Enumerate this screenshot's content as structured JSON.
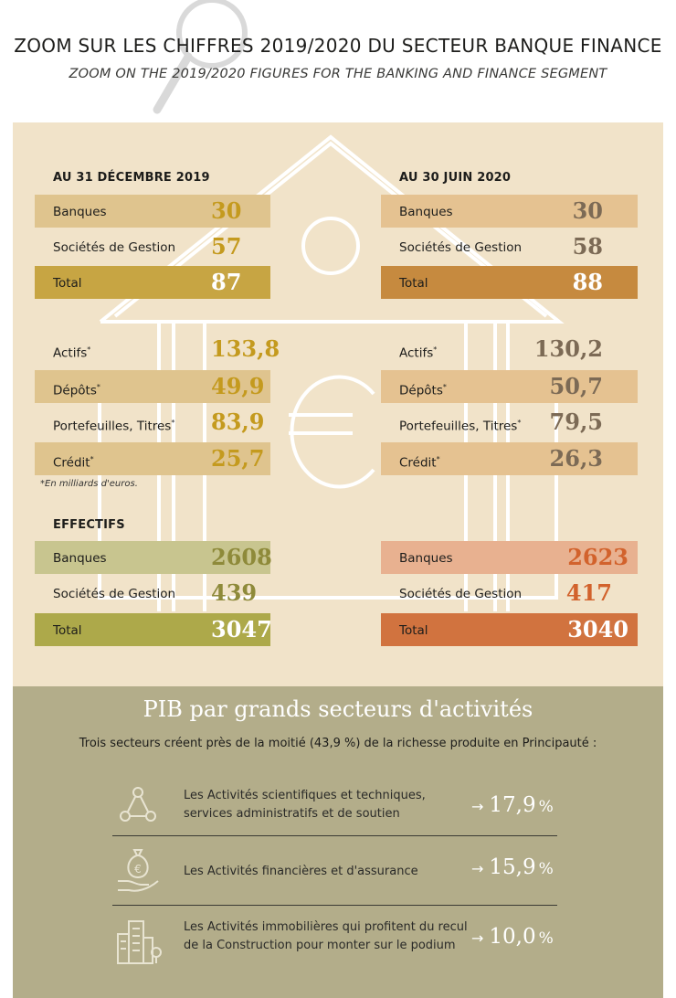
{
  "header": {
    "title": "ZOOM SUR LES CHIFFRES 2019/2020 DU SECTEUR BANQUE FINANCE",
    "subtitle": "ZOOM ON THE 2019/2020 FIGURES FOR THE BANKING AND FINANCE SEGMENT",
    "icon": "magnifier-icon"
  },
  "colors": {
    "beige_bg": "#f1e3c9",
    "olive_bg": "#b3ad8a",
    "gold_light": "#dfc48e",
    "gold_dark": "#c7a543",
    "orange_light": "#e5c291",
    "orange_dark": "#c68a3f",
    "green_light": "#c8c58f",
    "green_dark": "#ada94a",
    "salmon_light": "#e8b190",
    "salmon_dark": "#d1733f"
  },
  "left": {
    "heading": "AU 31 DÉCEMBRE 2019",
    "counts": {
      "banques_label": "Banques",
      "banques_value": "30",
      "societes_label": "Sociétés de Gestion",
      "societes_value": "57",
      "total_label": "Total",
      "total_value": "87"
    },
    "finance": {
      "actifs_label": "Actifs",
      "actifs_value": "133,8",
      "depots_label": "Dépôts",
      "depots_value": "49,9",
      "portefeuilles_label": "Portefeuilles, Titres",
      "portefeuilles_value": "83,9",
      "credit_label": "Crédit",
      "credit_value": "25,7",
      "asterisk": "*"
    },
    "note": "*En milliards d'euros.",
    "effectifs_heading": "EFFECTIFS",
    "effectifs": {
      "banques_label": "Banques",
      "banques_value": "2608",
      "societes_label": "Sociétés de Gestion",
      "societes_value": "439",
      "total_label": "Total",
      "total_value": "3047"
    }
  },
  "right": {
    "heading": "AU 30 JUIN 2020",
    "counts": {
      "banques_label": "Banques",
      "banques_value": "30",
      "societes_label": "Sociétés de Gestion",
      "societes_value": "58",
      "total_label": "Total",
      "total_value": "88"
    },
    "finance": {
      "actifs_label": "Actifs",
      "actifs_value": "130,2",
      "depots_label": "Dépôts",
      "depots_value": "50,7",
      "portefeuilles_label": "Portefeuilles, Titres",
      "portefeuilles_value": "79,5",
      "credit_label": "Crédit",
      "credit_value": "26,3",
      "asterisk": "*"
    },
    "effectifs": {
      "banques_label": "Banques",
      "banques_value": "2623",
      "societes_label": "Sociétés de Gestion",
      "societes_value": "417",
      "total_label": "Total",
      "total_value": "3040"
    }
  },
  "pib": {
    "title": "PIB par grands secteurs d'activités",
    "subtitle": "Trois secteurs créent près de la moitié (43,9 %) de la richesse produite en Principauté :",
    "arrow": "→",
    "unit": "%",
    "sectors": [
      {
        "icon": "network-triangle-icon",
        "line1": "Les Activités scientifiques et techniques,",
        "line2": "services administratifs et de soutien",
        "value": "17,9"
      },
      {
        "icon": "money-bag-hand-icon",
        "line1": "Les Activités financières et d'assurance",
        "line2": "",
        "value": "15,9"
      },
      {
        "icon": "buildings-icon",
        "line1": "Les Activités immobilières qui profitent du recul",
        "line2": "de la Construction pour monter sur le podium",
        "value": "10,0"
      }
    ]
  }
}
